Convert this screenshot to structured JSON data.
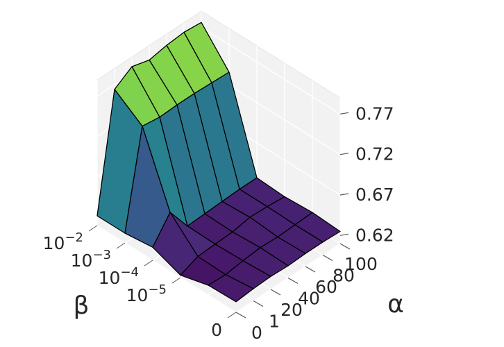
{
  "chart_data": {
    "type": "surface3d",
    "title": "",
    "xlabel": "β",
    "ylabel": "α",
    "zlabel": "",
    "beta_ticks": [
      {
        "base": "10",
        "exp": "−2"
      },
      {
        "base": "10",
        "exp": "−3"
      },
      {
        "base": "10",
        "exp": "−4"
      },
      {
        "base": "10",
        "exp": "−5"
      },
      {
        "base": "0",
        "exp": ""
      }
    ],
    "alpha_ticks": [
      "0",
      "1",
      "20",
      "40",
      "60",
      "80",
      "100"
    ],
    "z_ticks": [
      "0.62",
      "0.67",
      "0.72",
      "0.77"
    ],
    "zlim": [
      0.61,
      0.79
    ],
    "colormap": "viridis",
    "grid": true,
    "z_values": [
      [
        0.623,
        0.625,
        0.626,
        0.625,
        0.626,
        0.626,
        0.625
      ],
      [
        0.622,
        0.621,
        0.624,
        0.626,
        0.625,
        0.626,
        0.627
      ],
      [
        0.613,
        0.622,
        0.623,
        0.624,
        0.628,
        0.627,
        0.625
      ],
      [
        0.626,
        0.655,
        0.624,
        0.625,
        0.626,
        0.627,
        0.627
      ],
      [
        0.622,
        0.74,
        0.737,
        0.738,
        0.738,
        0.737,
        0.736
      ],
      [
        0.622,
        0.764,
        0.778,
        0.772,
        0.776,
        0.778,
        0.776
      ]
    ]
  }
}
